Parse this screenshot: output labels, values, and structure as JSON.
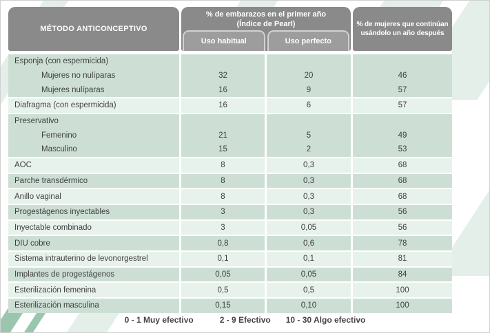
{
  "table": {
    "col1_header": "MÉTODO ANTICONCEPTIVO",
    "pearl_header_line1": "% de embarazos en el primer año",
    "pearl_header_line2": "(Índice de Pearl)",
    "sub_headers": [
      "Uso habitual",
      "Uso perfecto"
    ],
    "col4_header_line1": "% de mujeres que continúan",
    "col4_header_line2": "usándolo un año después",
    "rows": [
      {
        "label": "Esponja (con espermicida)",
        "indent": false,
        "habitual": "",
        "perfecto": "",
        "continuan": "",
        "shade": "dark",
        "gap_after": false
      },
      {
        "label": "Mujeres no nulíparas",
        "indent": true,
        "habitual": "32",
        "perfecto": "20",
        "continuan": "46",
        "shade": "dark",
        "gap_after": false
      },
      {
        "label": "Mujeres nulíparas",
        "indent": true,
        "habitual": "16",
        "perfecto": "9",
        "continuan": "57",
        "shade": "dark",
        "gap_after": true
      },
      {
        "label": "Diafragma (con espermicida)",
        "indent": false,
        "habitual": "16",
        "perfecto": "6",
        "continuan": "57",
        "shade": "light",
        "gap_after": true
      },
      {
        "label": "Preservativo",
        "indent": false,
        "habitual": "",
        "perfecto": "",
        "continuan": "",
        "shade": "dark",
        "gap_after": false
      },
      {
        "label": "Femenino",
        "indent": true,
        "habitual": "21",
        "perfecto": "5",
        "continuan": "49",
        "shade": "dark",
        "gap_after": false
      },
      {
        "label": "Masculino",
        "indent": true,
        "habitual": "15",
        "perfecto": "2",
        "continuan": "53",
        "shade": "dark",
        "gap_after": true
      },
      {
        "label": "AOC",
        "indent": false,
        "habitual": "8",
        "perfecto": "0,3",
        "continuan": "68",
        "shade": "light",
        "gap_after": true
      },
      {
        "label": "Parche transdérmico",
        "indent": false,
        "habitual": "8",
        "perfecto": "0,3",
        "continuan": "68",
        "shade": "dark",
        "gap_after": true
      },
      {
        "label": "Anillo vaginal",
        "indent": false,
        "habitual": "8",
        "perfecto": "0,3",
        "continuan": "68",
        "shade": "light",
        "gap_after": true
      },
      {
        "label": "Progestágenos inyectables",
        "indent": false,
        "habitual": "3",
        "perfecto": "0,3",
        "continuan": "56",
        "shade": "dark",
        "gap_after": true
      },
      {
        "label": "Inyectable combinado",
        "indent": false,
        "habitual": "3",
        "perfecto": "0,05",
        "continuan": "56",
        "shade": "light",
        "gap_after": true
      },
      {
        "label": "DIU cobre",
        "indent": false,
        "habitual": "0,8",
        "perfecto": "0,6",
        "continuan": "78",
        "shade": "dark",
        "gap_after": true
      },
      {
        "label": "Sistema intrauterino de levonorgestrel",
        "indent": false,
        "habitual": "0,1",
        "perfecto": "0,1",
        "continuan": "81",
        "shade": "light",
        "gap_after": true
      },
      {
        "label": "Implantes de progestágenos",
        "indent": false,
        "habitual": "0,05",
        "perfecto": "0,05",
        "continuan": "84",
        "shade": "dark",
        "gap_after": true
      },
      {
        "label": "Esterilización femenina",
        "indent": false,
        "habitual": "0,5",
        "perfecto": "0,5",
        "continuan": "100",
        "shade": "light",
        "gap_after": true
      },
      {
        "label": "Esterilización masculina",
        "indent": false,
        "habitual": "0,15",
        "perfecto": "0,10",
        "continuan": "100",
        "shade": "dark",
        "gap_after": false
      }
    ],
    "legend": [
      "0 - 1 Muy efectivo",
      "2 - 9 Efectivo",
      "10 - 30 Algo efectivo"
    ]
  },
  "colors": {
    "header_bg": "#8a8a8a",
    "subheader_bg": "#9d9d9d",
    "subheader_border": "#d2d2d2",
    "row_dark": "#cddfd4",
    "row_light": "#e8f2ec",
    "body_text": "#3f3f3f",
    "header_text": "#ffffff",
    "stripe_pale": "#e3efe8",
    "stripe_dark": "#9bc6ae"
  }
}
